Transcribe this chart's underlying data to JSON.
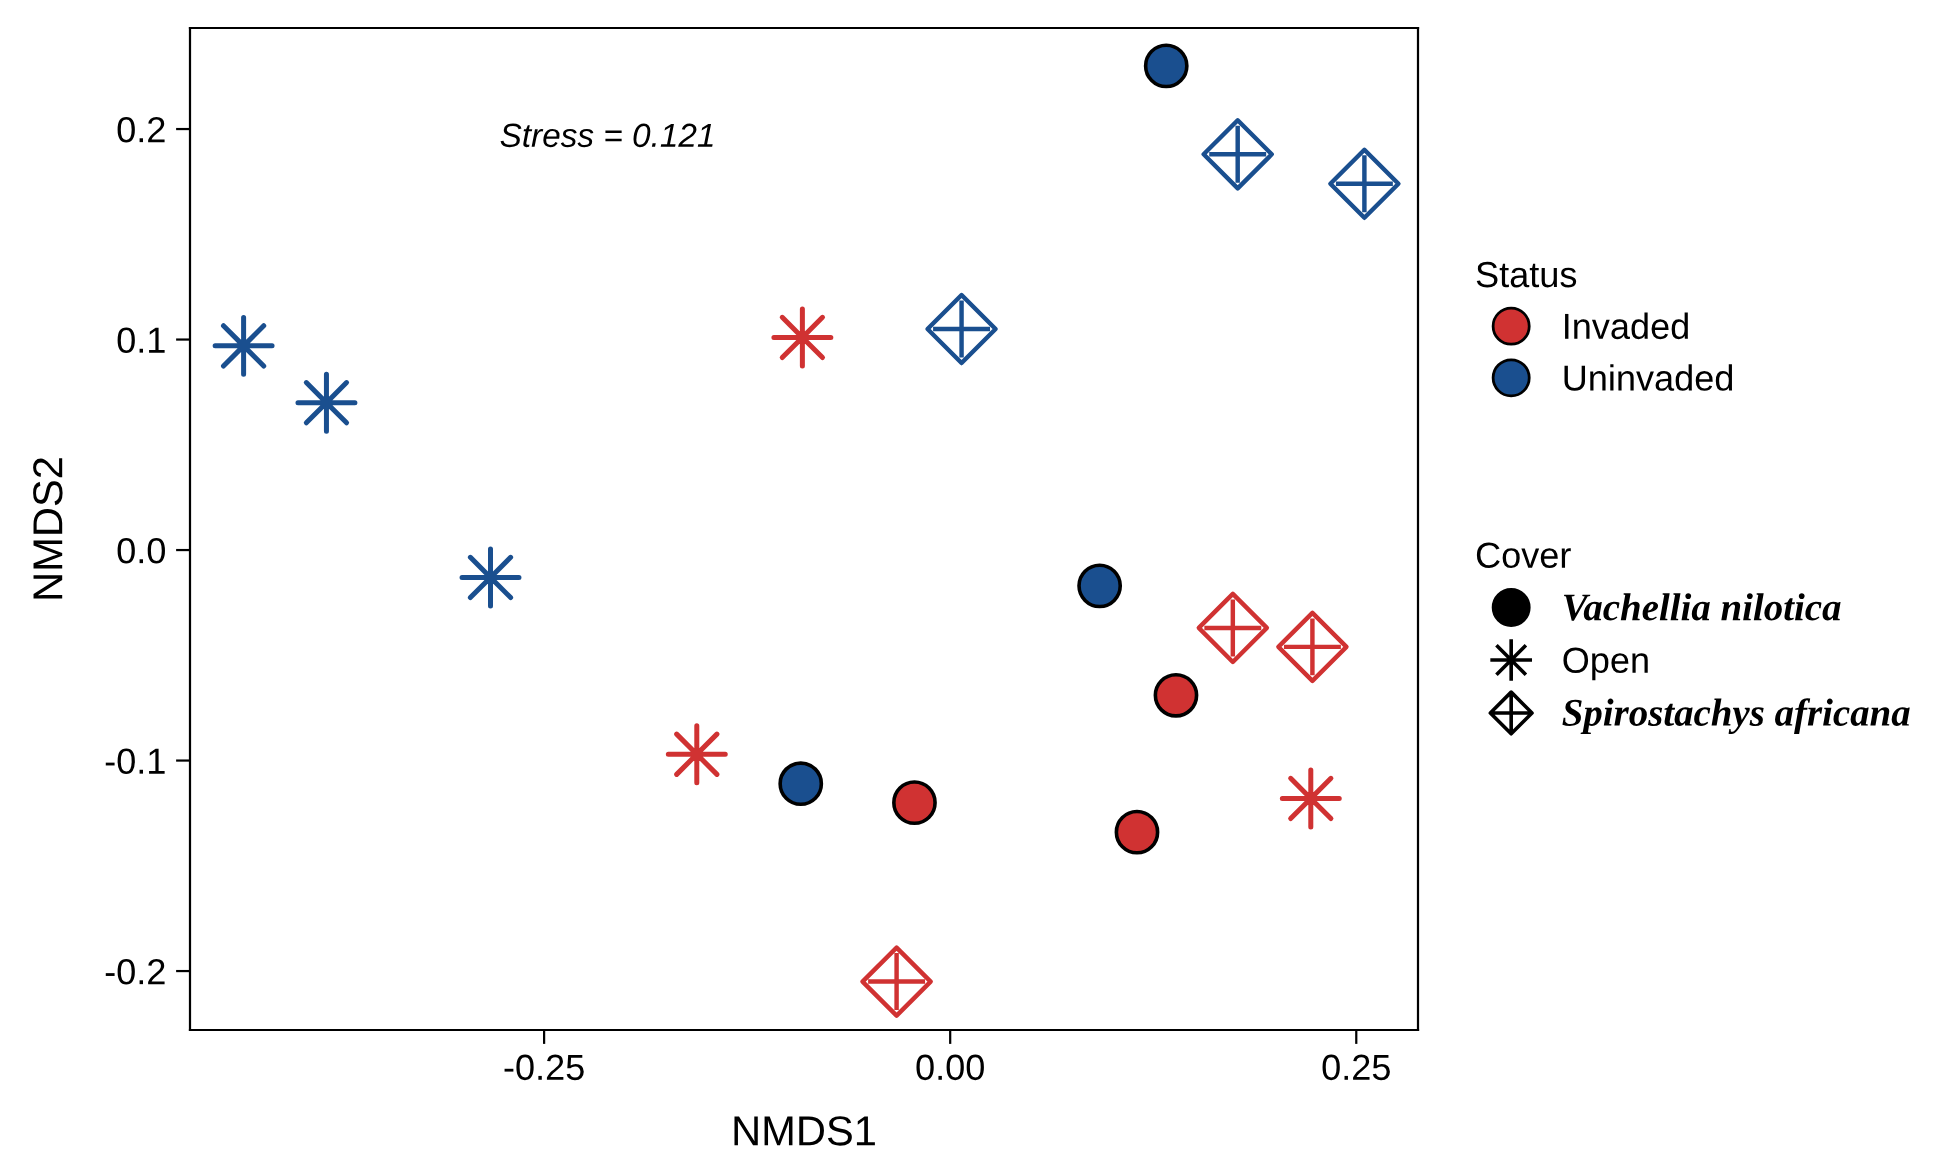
{
  "chart_data": {
    "type": "scatter",
    "xlabel": "NMDS1",
    "ylabel": "NMDS2",
    "xlim": [
      -0.468,
      0.288
    ],
    "ylim": [
      -0.228,
      0.248
    ],
    "xticks": [
      {
        "value": -0.25,
        "label": "-0.25"
      },
      {
        "value": 0,
        "label": "0.00"
      },
      {
        "value": 0.25,
        "label": "0.25"
      }
    ],
    "yticks": [
      {
        "value": -0.2,
        "label": "-0.2"
      },
      {
        "value": -0.1,
        "label": "-0.1"
      },
      {
        "value": 0,
        "label": "0.0"
      },
      {
        "value": 0.1,
        "label": "0.1"
      },
      {
        "value": 0.2,
        "label": "0.2"
      }
    ],
    "grid": false,
    "legend": "right",
    "legend_title": [
      "Status",
      "Cover"
    ],
    "annotations": [
      "Stress = 0.121"
    ],
    "series": [
      {
        "name": "Invaded",
        "color": "#d03232",
        "marker": "circle",
        "x": [
          0.139,
          -0.022,
          0.115
        ],
        "values": [
          -0.069,
          -0.12,
          -0.134
        ]
      },
      {
        "name": "Uninvaded",
        "color": "#1a4f8f",
        "marker": "circle",
        "x": [
          0.133,
          0.092,
          -0.092
        ],
        "values": [
          0.23,
          -0.017,
          -0.111
        ]
      },
      {
        "color": "#d03232",
        "marker": "diamond",
        "x": [
          0.174,
          0.223,
          -0.033
        ],
        "values": [
          -0.037,
          -0.046,
          -0.205
        ]
      },
      {
        "color": "#d03232",
        "marker": "star",
        "x": [
          -0.091,
          -0.156,
          0.222
        ],
        "values": [
          0.101,
          -0.097,
          -0.118
        ]
      },
      {
        "color": "#1a4f8f",
        "marker": "diamond",
        "x": [
          0.177,
          0.255,
          0.007
        ],
        "values": [
          0.188,
          0.174,
          0.105
        ]
      },
      {
        "color": "#1a4f8f",
        "marker": "star",
        "x": [
          -0.435,
          -0.384,
          -0.283
        ],
        "values": [
          0.097,
          0.07,
          -0.013
        ]
      },
      {
        "name": "Vachellia nilotica",
        "color": "#000000",
        "marker": "circle"
      },
      {
        "name": "Open",
        "color": "#000000",
        "marker": "star"
      },
      {
        "name": "Spirostachys africana",
        "color": "#000000",
        "marker": "diamond"
      }
    ]
  }
}
